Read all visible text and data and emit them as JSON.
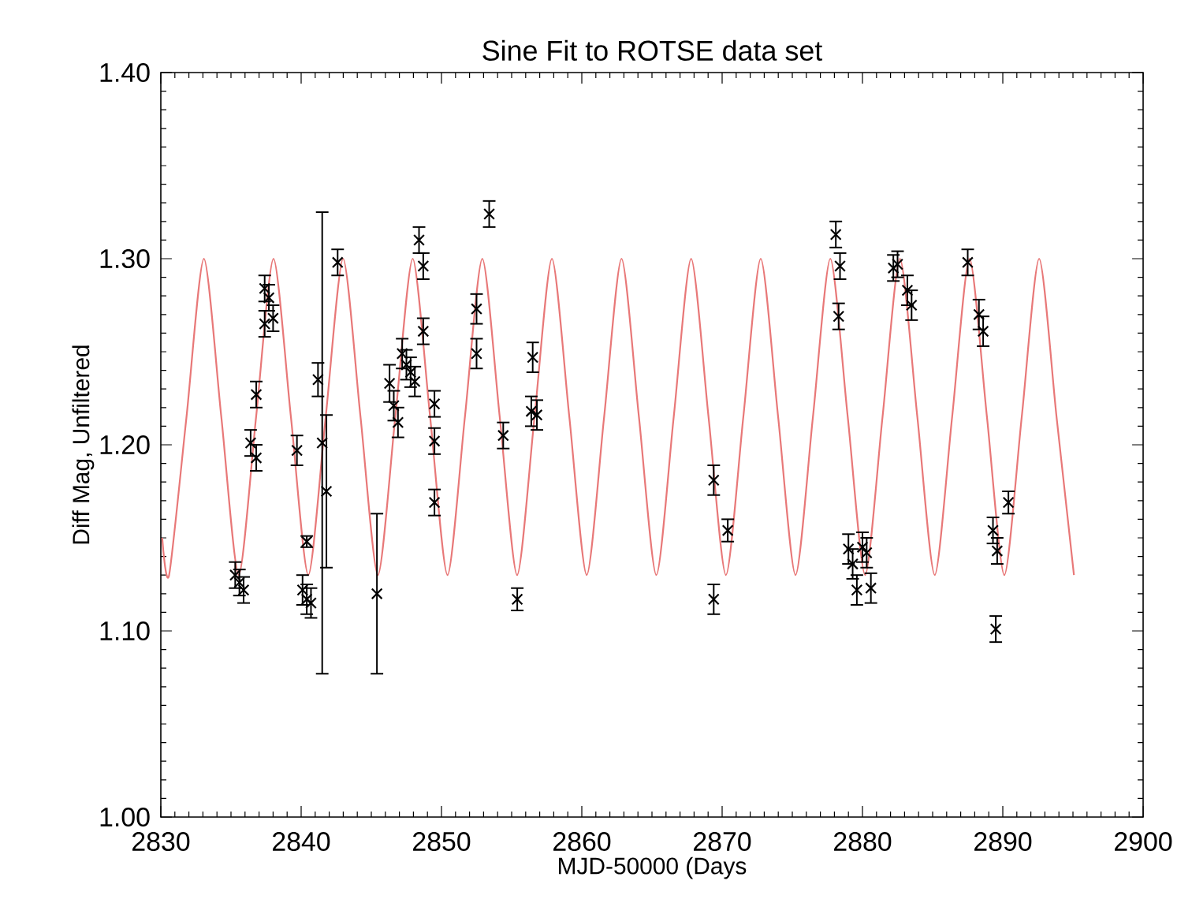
{
  "chart_data": {
    "type": "scatter",
    "title": "Sine Fit to ROTSE data set",
    "xlabel": "MJD-50000 (Days",
    "ylabel": "Diff Mag, Unfiltered",
    "xlim": [
      2830,
      2900
    ],
    "ylim": [
      1.0,
      1.4
    ],
    "xticks": [
      2830,
      2840,
      2850,
      2860,
      2870,
      2880,
      2890,
      2900
    ],
    "yticks": [
      {
        "value": 1.0,
        "label": "1.00"
      },
      {
        "value": 1.1,
        "label": "1.10"
      },
      {
        "value": 1.2,
        "label": "1.20"
      },
      {
        "value": 1.3,
        "label": "1.30"
      },
      {
        "value": 1.4,
        "label": "1.40"
      }
    ],
    "grid": false,
    "series": [
      {
        "type": "line",
        "color": "#e87878",
        "marker": "none",
        "line_style": "solid",
        "x": [
          2830.1,
          2830.59,
          2831.83,
          2833.07,
          2834.31,
          2835.55,
          2836.79,
          2838.03,
          2839.27,
          2840.51,
          2841.75,
          2842.99,
          2844.23,
          2845.47,
          2846.71,
          2847.95,
          2849.19,
          2850.43,
          2851.67,
          2852.91,
          2854.15,
          2855.39,
          2856.63,
          2857.87,
          2859.11,
          2860.35,
          2861.59,
          2862.83,
          2864.07,
          2865.31,
          2866.55,
          2867.79,
          2869.03,
          2870.27,
          2871.51,
          2872.75,
          2873.99,
          2875.23,
          2876.47,
          2877.71,
          2878.95,
          2880.19,
          2881.43,
          2882.67,
          2883.91,
          2885.15,
          2886.39,
          2887.63,
          2888.87,
          2890.11,
          2891.35,
          2892.59,
          2893.83,
          2895.07
        ],
        "values": [
          1.15,
          1.13,
          1.215,
          1.3,
          1.215,
          1.13,
          1.215,
          1.3,
          1.215,
          1.13,
          1.215,
          1.3,
          1.215,
          1.13,
          1.215,
          1.3,
          1.215,
          1.13,
          1.215,
          1.3,
          1.215,
          1.13,
          1.215,
          1.3,
          1.215,
          1.13,
          1.215,
          1.3,
          1.215,
          1.13,
          1.215,
          1.3,
          1.215,
          1.13,
          1.215,
          1.3,
          1.215,
          1.13,
          1.215,
          1.3,
          1.215,
          1.13,
          1.215,
          1.3,
          1.215,
          1.13,
          1.215,
          1.3,
          1.215,
          1.13,
          1.215,
          1.3,
          1.215,
          1.13
        ]
      },
      {
        "color": "#000000",
        "marker": "cross",
        "x": [
          2835.3,
          2835.6,
          2835.9,
          2836.8,
          2836.4,
          2836.8,
          2837.4,
          2837.7,
          2838.0,
          2837.4,
          2839.7,
          2840.4,
          2840.1,
          2840.4,
          2840.7,
          2841.2,
          2841.5,
          2841.8,
          2842.6,
          2845.4,
          2846.3,
          2846.6,
          2846.9,
          2847.2,
          2847.5,
          2847.8,
          2848.1,
          2848.4,
          2848.7,
          2848.7,
          2849.5,
          2849.5,
          2849.5,
          2853.4,
          2852.5,
          2852.5,
          2854.4,
          2855.4,
          2856.5,
          2856.4,
          2856.8,
          2869.4,
          2869.4,
          2870.4,
          2878.1,
          2878.4,
          2878.3,
          2879.0,
          2879.3,
          2879.6,
          2880.0,
          2880.3,
          2880.6,
          2882.2,
          2882.5,
          2883.2,
          2883.5,
          2887.5,
          2888.3,
          2888.6,
          2889.3,
          2889.6,
          2889.5,
          2890.4
        ],
        "values": [
          1.13,
          1.126,
          1.122,
          1.227,
          1.201,
          1.193,
          1.284,
          1.279,
          1.268,
          1.265,
          1.197,
          1.148,
          1.122,
          1.117,
          1.115,
          1.235,
          1.201,
          1.175,
          1.298,
          1.12,
          1.233,
          1.221,
          1.212,
          1.249,
          1.243,
          1.239,
          1.234,
          1.31,
          1.296,
          1.261,
          1.222,
          1.202,
          1.169,
          1.324,
          1.273,
          1.249,
          1.205,
          1.117,
          1.247,
          1.218,
          1.216,
          1.181,
          1.117,
          1.154,
          1.313,
          1.296,
          1.269,
          1.144,
          1.136,
          1.122,
          1.145,
          1.142,
          1.123,
          1.295,
          1.297,
          1.283,
          1.275,
          1.298,
          1.27,
          1.261,
          1.154,
          1.143,
          1.101,
          1.169
        ],
        "errors": [
          0.007,
          0.007,
          0.007,
          0.007,
          0.007,
          0.007,
          0.007,
          0.007,
          0.007,
          0.007,
          0.008,
          0.003,
          0.008,
          0.008,
          0.008,
          0.009,
          0.124,
          0.041,
          0.007,
          0.043,
          0.01,
          0.008,
          0.008,
          0.008,
          0.008,
          0.008,
          0.008,
          0.007,
          0.007,
          0.007,
          0.007,
          0.007,
          0.007,
          0.007,
          0.008,
          0.008,
          0.007,
          0.006,
          0.008,
          0.008,
          0.008,
          0.008,
          0.008,
          0.006,
          0.007,
          0.007,
          0.007,
          0.008,
          0.008,
          0.008,
          0.008,
          0.008,
          0.008,
          0.007,
          0.007,
          0.008,
          0.008,
          0.007,
          0.008,
          0.008,
          0.007,
          0.007,
          0.007,
          0.006
        ]
      }
    ]
  }
}
